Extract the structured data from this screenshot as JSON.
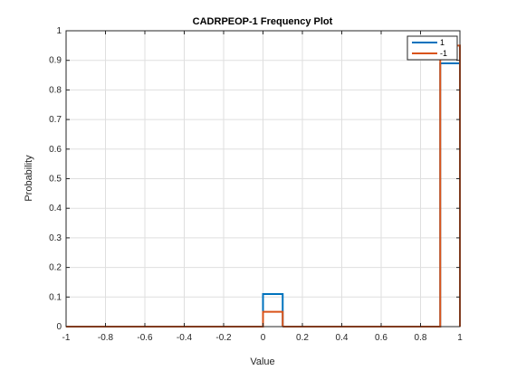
{
  "chart_data": {
    "type": "histogram-stairs",
    "title": "CADRPEOP-1 Frequency Plot",
    "xlabel": "Value",
    "ylabel": "Probability",
    "xlim": [
      -1,
      1
    ],
    "ylim": [
      0,
      1
    ],
    "xticks": [
      -1,
      -0.8,
      -0.6,
      -0.4,
      -0.2,
      0,
      0.2,
      0.4,
      0.6,
      0.8,
      1
    ],
    "xtick_labels": [
      "-1",
      "-0.8",
      "-0.6",
      "-0.4",
      "-0.2",
      "0",
      "0.2",
      "0.4",
      "0.6",
      "0.8",
      "1"
    ],
    "yticks": [
      0,
      0.1,
      0.2,
      0.3,
      0.4,
      0.5,
      0.6,
      0.7,
      0.8,
      0.9,
      1
    ],
    "ytick_labels": [
      "0",
      "0.1",
      "0.2",
      "0.3",
      "0.4",
      "0.5",
      "0.6",
      "0.7",
      "0.8",
      "0.9",
      "1"
    ],
    "grid": true,
    "legend_position": "top-right",
    "bin_edges": [
      -1,
      0,
      0.1,
      0.9,
      1
    ],
    "series": [
      {
        "name": "1",
        "color": "#0072BD",
        "values": [
          0,
          0.11,
          0,
          0.89
        ]
      },
      {
        "name": "-1",
        "color": "#D95319",
        "values": [
          0,
          0.05,
          0,
          0.95
        ]
      }
    ]
  }
}
